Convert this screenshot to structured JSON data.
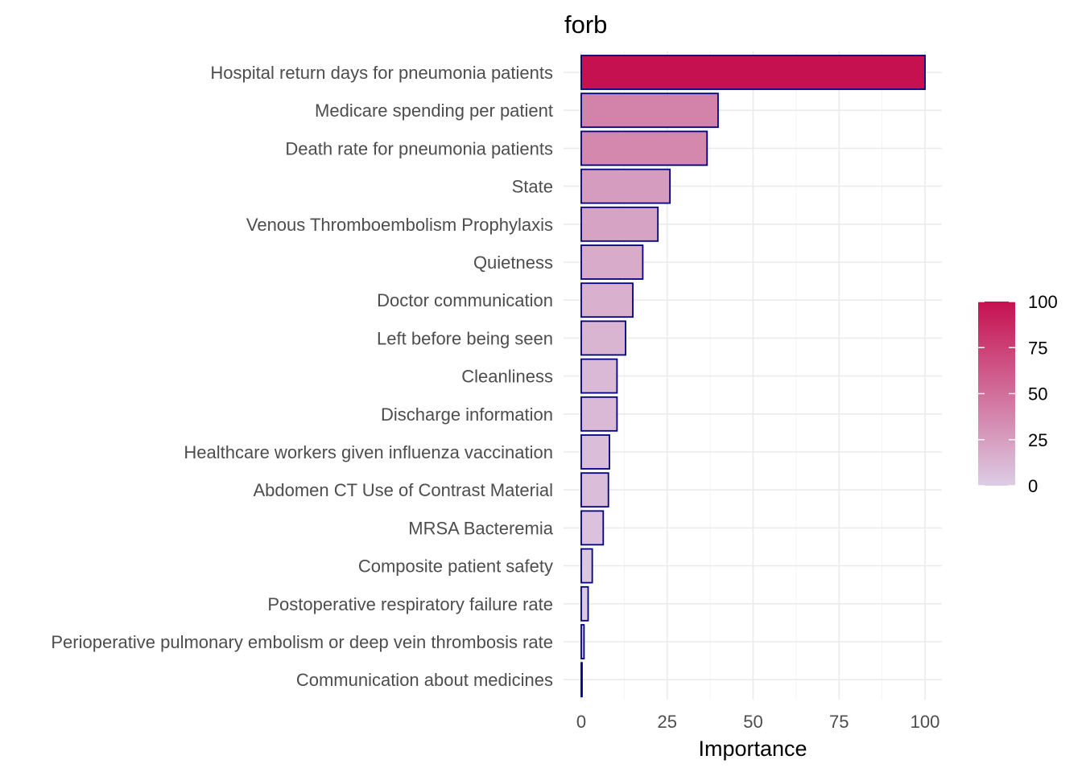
{
  "chart_data": {
    "type": "bar",
    "orientation": "horizontal",
    "title": "forb",
    "xlabel": "Importance",
    "ylabel": "",
    "xlim": [
      0,
      100
    ],
    "xticks": [
      0,
      25,
      50,
      75,
      100
    ],
    "grid": true,
    "categories": [
      "Hospital return days for pneumonia patients",
      "Medicare spending per patient",
      "Death rate for pneumonia patients",
      "State",
      "Venous Thromboembolism Prophylaxis",
      "Quietness",
      "Doctor communication",
      "Left before being seen",
      "Cleanliness",
      "Discharge information",
      "Healthcare workers given influenza vaccination",
      "Abdomen CT Use of Contrast Material",
      "MRSA Bacteremia",
      "Composite patient safety",
      "Postoperative respiratory failure rate",
      "Perioperative pulmonary embolism or deep vein thrombosis rate",
      "Communication about medicines"
    ],
    "values": [
      100,
      39.8,
      36.6,
      25.8,
      22.3,
      17.9,
      15.0,
      12.9,
      10.4,
      10.4,
      8.2,
      7.9,
      6.4,
      3.2,
      2.0,
      0.8,
      0.1
    ],
    "bar_outline_color": "#000080",
    "fill_gradient": {
      "low": "#dccde5",
      "high": "#c51150",
      "range": [
        0,
        100
      ]
    },
    "legend": {
      "position": "right",
      "ticks": [
        100,
        75,
        50,
        25,
        0
      ]
    }
  }
}
